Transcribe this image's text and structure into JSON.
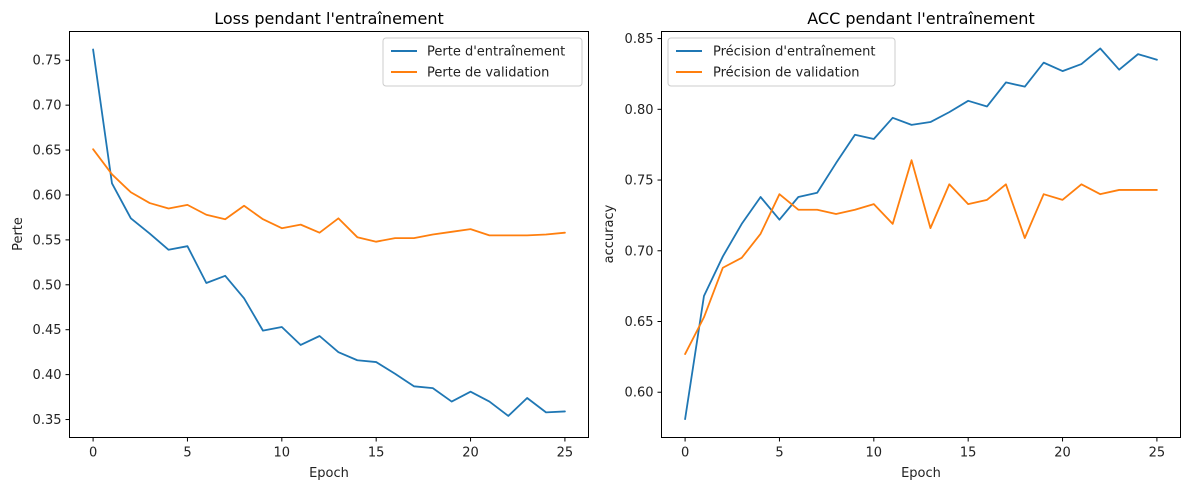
{
  "chart_data": [
    {
      "type": "line",
      "title": "Loss pendant l'entraînement",
      "xlabel": "Epoch",
      "ylabel": "Perte",
      "xlim": [
        -1.25,
        26.25
      ],
      "ylim": [
        0.33,
        0.782
      ],
      "xticks": [
        0,
        5,
        10,
        15,
        20,
        25
      ],
      "yticks": [
        0.35,
        0.4,
        0.45,
        0.5,
        0.55,
        0.6,
        0.65,
        0.7,
        0.75
      ],
      "ytick_labels": [
        "0.35",
        "0.40",
        "0.45",
        "0.50",
        "0.55",
        "0.60",
        "0.65",
        "0.70",
        "0.75"
      ],
      "x": [
        0,
        1,
        2,
        3,
        4,
        5,
        6,
        7,
        8,
        9,
        10,
        11,
        12,
        13,
        14,
        15,
        16,
        17,
        18,
        19,
        20,
        21,
        22,
        23,
        24,
        25
      ],
      "legend_position": "upper right",
      "grid": false,
      "series": [
        {
          "name": "Perte d'entraînement",
          "color": "#1f77b4",
          "values": [
            0.762,
            0.613,
            0.574,
            0.557,
            0.539,
            0.543,
            0.502,
            0.51,
            0.485,
            0.449,
            0.453,
            0.433,
            0.443,
            0.425,
            0.416,
            0.414,
            0.401,
            0.387,
            0.385,
            0.37,
            0.381,
            0.37,
            0.354,
            0.374,
            0.358,
            0.359
          ]
        },
        {
          "name": "Perte de validation",
          "color": "#ff7f0e",
          "values": [
            0.651,
            0.623,
            0.603,
            0.591,
            0.585,
            0.589,
            0.578,
            0.573,
            0.588,
            0.573,
            0.563,
            0.567,
            0.558,
            0.574,
            0.553,
            0.548,
            0.552,
            0.552,
            0.556,
            0.559,
            0.562,
            0.555,
            0.555,
            0.555,
            0.556,
            0.558
          ]
        }
      ]
    },
    {
      "type": "line",
      "title": "ACC pendant l'entraînement",
      "xlabel": "Epoch",
      "ylabel": "accuracy",
      "xlim": [
        -1.25,
        26.25
      ],
      "ylim": [
        0.568,
        0.855
      ],
      "xticks": [
        0,
        5,
        10,
        15,
        20,
        25
      ],
      "yticks": [
        0.6,
        0.65,
        0.7,
        0.75,
        0.8,
        0.85
      ],
      "ytick_labels": [
        "0.60",
        "0.65",
        "0.70",
        "0.75",
        "0.80",
        "0.85"
      ],
      "x": [
        0,
        1,
        2,
        3,
        4,
        5,
        6,
        7,
        8,
        9,
        10,
        11,
        12,
        13,
        14,
        15,
        16,
        17,
        18,
        19,
        20,
        21,
        22,
        23,
        24,
        25
      ],
      "legend_position": "upper left",
      "grid": false,
      "series": [
        {
          "name": "Précision d'entraînement",
          "color": "#1f77b4",
          "values": [
            0.581,
            0.668,
            0.696,
            0.719,
            0.738,
            0.722,
            0.738,
            0.741,
            0.762,
            0.782,
            0.779,
            0.794,
            0.789,
            0.791,
            0.798,
            0.806,
            0.802,
            0.819,
            0.816,
            0.833,
            0.827,
            0.832,
            0.843,
            0.828,
            0.839,
            0.835
          ]
        },
        {
          "name": "Précision de validation",
          "color": "#ff7f0e",
          "values": [
            0.627,
            0.653,
            0.688,
            0.695,
            0.712,
            0.74,
            0.729,
            0.729,
            0.726,
            0.729,
            0.733,
            0.719,
            0.764,
            0.716,
            0.747,
            0.733,
            0.736,
            0.747,
            0.709,
            0.74,
            0.736,
            0.747,
            0.74,
            0.743,
            0.743,
            0.743
          ]
        }
      ]
    }
  ]
}
